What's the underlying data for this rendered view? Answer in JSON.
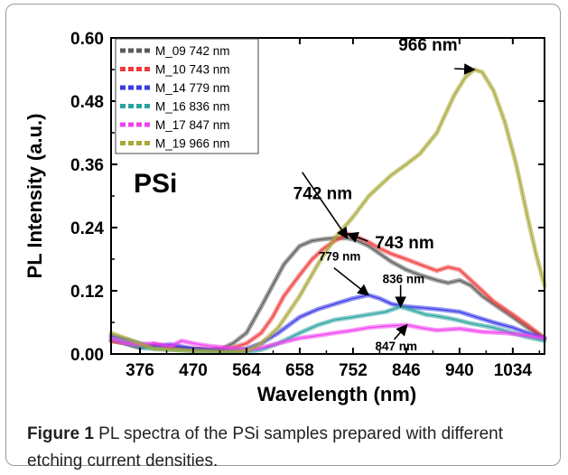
{
  "chart_data": {
    "type": "line",
    "ylabel": "PL Intensity (a.u.)",
    "xlabel": "Wavelength (nm)",
    "xlim": [
      325,
      1090
    ],
    "ylim": [
      0,
      0.6
    ],
    "xticks": [
      "376",
      "470",
      "564",
      "658",
      "752",
      "846",
      "940",
      "1034"
    ],
    "yticks": [
      "0.00",
      "0.12",
      "0.24",
      "0.36",
      "0.48",
      "0.60"
    ],
    "legend_position": "top-left",
    "series": [
      {
        "name": "M_09  742 nm",
        "color": "#5a5a5a",
        "x": [
          325,
          350,
          376,
          400,
          430,
          470,
          500,
          520,
          540,
          564,
          590,
          610,
          630,
          658,
          680,
          700,
          720,
          742,
          760,
          780,
          800,
          820,
          846,
          870,
          900,
          920,
          940,
          960,
          980,
          1000,
          1034,
          1060,
          1090
        ],
        "y": [
          0.025,
          0.02,
          0.012,
          0.018,
          0.012,
          0.01,
          0.008,
          0.01,
          0.02,
          0.04,
          0.09,
          0.13,
          0.17,
          0.205,
          0.215,
          0.218,
          0.22,
          0.22,
          0.215,
          0.205,
          0.19,
          0.175,
          0.16,
          0.15,
          0.14,
          0.135,
          0.14,
          0.13,
          0.11,
          0.095,
          0.07,
          0.05,
          0.03
        ]
      },
      {
        "name": "M_10  743 nm",
        "color": "#ef3a3a",
        "x": [
          325,
          350,
          376,
          400,
          430,
          470,
          500,
          520,
          540,
          564,
          590,
          610,
          630,
          658,
          680,
          700,
          720,
          743,
          760,
          780,
          800,
          820,
          846,
          870,
          900,
          920,
          940,
          960,
          980,
          1000,
          1034,
          1060,
          1090
        ],
        "y": [
          0.025,
          0.02,
          0.012,
          0.018,
          0.012,
          0.01,
          0.008,
          0.009,
          0.012,
          0.02,
          0.04,
          0.07,
          0.11,
          0.15,
          0.18,
          0.2,
          0.215,
          0.228,
          0.222,
          0.212,
          0.2,
          0.19,
          0.18,
          0.17,
          0.158,
          0.165,
          0.16,
          0.14,
          0.12,
          0.1,
          0.075,
          0.055,
          0.03
        ]
      },
      {
        "name": "M_14  779 nm",
        "color": "#3838e8",
        "x": [
          325,
          350,
          376,
          400,
          430,
          470,
          500,
          530,
          564,
          590,
          620,
          658,
          690,
          720,
          750,
          779,
          800,
          820,
          846,
          870,
          900,
          940,
          970,
          1000,
          1034,
          1060,
          1090
        ],
        "y": [
          0.035,
          0.028,
          0.02,
          0.015,
          0.018,
          0.01,
          0.008,
          0.006,
          0.01,
          0.02,
          0.04,
          0.07,
          0.085,
          0.095,
          0.105,
          0.112,
          0.105,
          0.095,
          0.09,
          0.088,
          0.085,
          0.08,
          0.07,
          0.06,
          0.05,
          0.04,
          0.03
        ]
      },
      {
        "name": "M_16  836 nm",
        "color": "#2aa3a0",
        "x": [
          325,
          350,
          376,
          400,
          430,
          470,
          500,
          530,
          564,
          590,
          620,
          658,
          690,
          720,
          752,
          780,
          810,
          836,
          860,
          880,
          900,
          930,
          960,
          1000,
          1034,
          1060,
          1090
        ],
        "y": [
          0.03,
          0.02,
          0.012,
          0.01,
          0.008,
          0.006,
          0.004,
          0.003,
          0.004,
          0.008,
          0.02,
          0.04,
          0.055,
          0.065,
          0.07,
          0.075,
          0.08,
          0.09,
          0.082,
          0.075,
          0.072,
          0.066,
          0.058,
          0.05,
          0.04,
          0.032,
          0.025
        ]
      },
      {
        "name": "M_17  847 nm",
        "color": "#f040f0",
        "x": [
          325,
          350,
          376,
          400,
          430,
          450,
          470,
          500,
          530,
          564,
          590,
          620,
          658,
          690,
          720,
          752,
          780,
          810,
          847,
          870,
          900,
          940,
          980,
          1020,
          1060,
          1090
        ],
        "y": [
          0.03,
          0.02,
          0.018,
          0.02,
          0.015,
          0.025,
          0.02,
          0.015,
          0.012,
          0.008,
          0.012,
          0.02,
          0.03,
          0.035,
          0.04,
          0.045,
          0.05,
          0.053,
          0.055,
          0.05,
          0.045,
          0.048,
          0.042,
          0.04,
          0.035,
          0.03
        ]
      },
      {
        "name": "M_19  966 nm",
        "color": "#a8a838",
        "x": [
          325,
          350,
          376,
          400,
          430,
          470,
          500,
          530,
          564,
          590,
          620,
          658,
          690,
          720,
          752,
          780,
          800,
          820,
          846,
          870,
          900,
          930,
          950,
          966,
          980,
          1000,
          1020,
          1040,
          1060,
          1075,
          1090
        ],
        "y": [
          0.04,
          0.03,
          0.02,
          0.01,
          0.008,
          0.006,
          0.005,
          0.004,
          0.006,
          0.02,
          0.05,
          0.11,
          0.17,
          0.22,
          0.26,
          0.3,
          0.32,
          0.34,
          0.36,
          0.38,
          0.42,
          0.49,
          0.525,
          0.54,
          0.535,
          0.5,
          0.44,
          0.36,
          0.26,
          0.19,
          0.13
        ]
      }
    ],
    "annotations": [
      {
        "text": "966 nm",
        "x": 966,
        "y": 0.54,
        "style": "large"
      },
      {
        "text": "742 nm",
        "x": 742,
        "y": 0.22,
        "style": "large"
      },
      {
        "text": "743 nm",
        "x": 743,
        "y": 0.228,
        "style": "large"
      },
      {
        "text": "779 nm",
        "x": 779,
        "y": 0.112,
        "style": "small"
      },
      {
        "text": "836 nm",
        "x": 836,
        "y": 0.09,
        "style": "small"
      },
      {
        "text": "847 nm",
        "x": 847,
        "y": 0.055,
        "style": "small"
      }
    ],
    "inset_label": "PSi"
  },
  "caption": {
    "label": "Figure 1",
    "text": " PL spectra of the PSi samples prepared with different etching current densities."
  }
}
